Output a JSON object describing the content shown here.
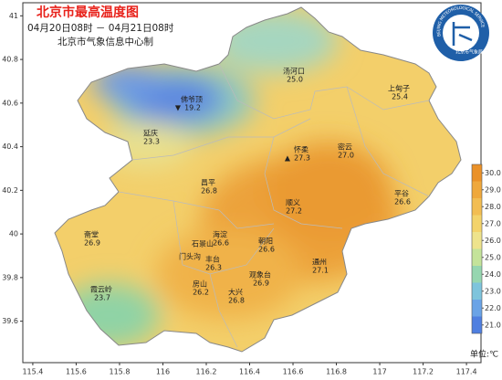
{
  "header": {
    "title": "北京市最高温度图",
    "period": "04月20日08时 － 04月21日08时",
    "producer": "北京市气象信息中心制"
  },
  "logo": {
    "text_en": "BEIJING METEOROLOGICAL SERVICE",
    "text_cn": "北京市气象局"
  },
  "axes": {
    "xlim": [
      115.354,
      117.467
    ],
    "ylim": [
      39.41,
      41.06
    ],
    "xticks": [
      115.4,
      115.6,
      115.8,
      116,
      116.2,
      116.4,
      116.6,
      116.8,
      117,
      117.2,
      117.4
    ],
    "yticks": [
      41,
      40.8,
      40.6,
      40.4,
      40.2,
      40,
      39.8,
      39.6
    ]
  },
  "stations": [
    {
      "name": "汤河口",
      "value": 25.0,
      "value_label": "25.0"
    },
    {
      "name": "上甸子",
      "value": 25.4,
      "value_label": "25.4"
    },
    {
      "name": "佛爷顶",
      "value": 19.2,
      "value_label": "19.2",
      "marker": "▼"
    },
    {
      "name": "延庆",
      "value": 23.3,
      "value_label": "23.3"
    },
    {
      "name": "怀柔",
      "value": 27.3,
      "value_label": "27.3",
      "marker": "▲"
    },
    {
      "name": "密云",
      "value": 27.0,
      "value_label": "27.0"
    },
    {
      "name": "昌平",
      "value": 26.8,
      "value_label": "26.8"
    },
    {
      "name": "顺义",
      "value": 27.2,
      "value_label": "27.2"
    },
    {
      "name": "平谷",
      "value": 26.6,
      "value_label": "26.6"
    },
    {
      "name": "斋堂",
      "value": 26.9,
      "value_label": "26.9"
    },
    {
      "name": "海淀",
      "value": 26.6,
      "value_label": "26.6"
    },
    {
      "name": "石景山"
    },
    {
      "name": "门头沟"
    },
    {
      "name": "丰台",
      "value": 26.3,
      "value_label": "26.3"
    },
    {
      "name": "朝阳",
      "value": 26.6,
      "value_label": "26.6"
    },
    {
      "name": "通州",
      "value": 27.1,
      "value_label": "27.1"
    },
    {
      "name": "观象台",
      "value": 26.9,
      "value_label": "26.9"
    },
    {
      "name": "房山",
      "value": 26.2,
      "value_label": "26.2"
    },
    {
      "name": "大兴",
      "value": 26.8,
      "value_label": "26.8"
    },
    {
      "name": "霞云岭",
      "value": 23.7,
      "value_label": "23.7"
    }
  ],
  "colorbar": {
    "lim": [
      20.5,
      30.5
    ],
    "colors": [
      "#4f7fe0",
      "#6aa3e6",
      "#7ec4dc",
      "#96d6b0",
      "#c4e39a",
      "#eee38c",
      "#f3d36a",
      "#f2bd52",
      "#efa83c",
      "#ea9128"
    ],
    "ticks": [
      {
        "value": 30,
        "label": "30.0"
      },
      {
        "value": 29,
        "label": "29.0"
      },
      {
        "value": 28,
        "label": "28.0"
      },
      {
        "value": 27,
        "label": "27.0"
      },
      {
        "value": 26,
        "label": "26.0"
      },
      {
        "value": 25,
        "label": "25.0"
      },
      {
        "value": 24,
        "label": "24.0"
      },
      {
        "value": 23,
        "label": "23.0"
      },
      {
        "value": 22,
        "label": "22.0"
      },
      {
        "value": 21,
        "label": "21.0"
      }
    ],
    "unit": "单位:℃"
  }
}
